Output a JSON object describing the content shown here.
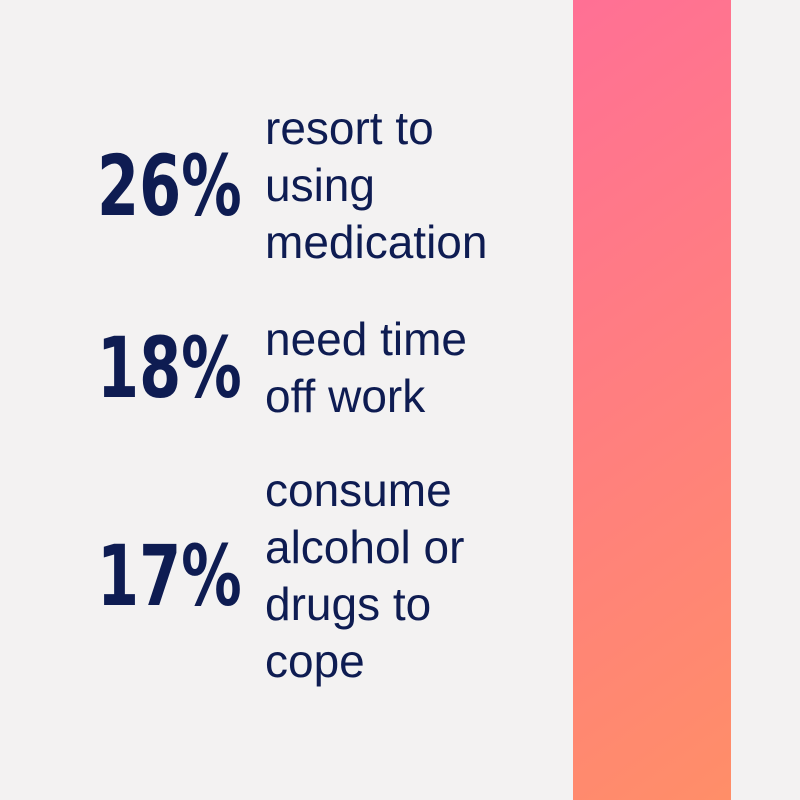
{
  "page": {
    "kind": "statistics-infographic",
    "background_color": "#F3F2F2",
    "text_color": "#0E1C52",
    "accent_bar": {
      "gradient_top_color": "#FF7095",
      "gradient_bottom_color": "#FF8E68"
    }
  },
  "stats": [
    {
      "value": "26%",
      "label": "resort to\nusing\nmedication"
    },
    {
      "value": "18%",
      "label": "need time\noff work"
    },
    {
      "value": "17%",
      "label": "consume\nalcohol or\ndrugs to\ncope"
    }
  ],
  "chart_data": {
    "type": "table",
    "title": "",
    "categories": [
      "resort to using medication",
      "need time off work",
      "consume alcohol or drugs to cope"
    ],
    "values": [
      26,
      18,
      17
    ],
    "unit": "percent",
    "legend_position": "none",
    "grid": false
  }
}
